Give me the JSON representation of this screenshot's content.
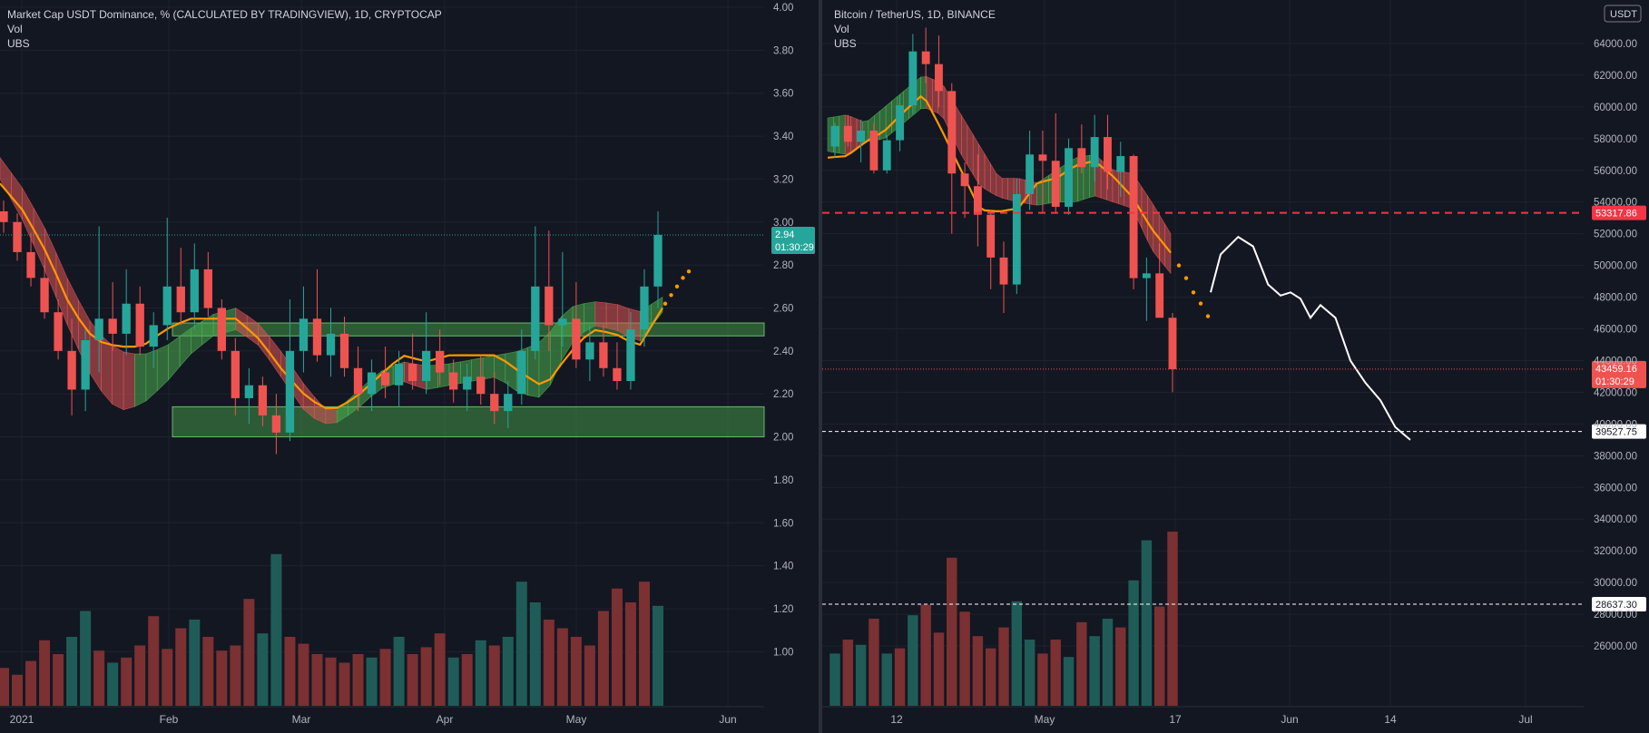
{
  "theme": {
    "background": "#131722",
    "grid": "#1e222d",
    "axis_text": "#b2b5be",
    "up_color": "#26a69a",
    "down_color": "#ef5350",
    "volume_up": "#1f5c58",
    "volume_down": "#7b3032",
    "band_bull": "#4caf50",
    "band_bear": "#e05555",
    "ma_line": "#ff9800",
    "zone_fill": "#4caf50",
    "projection": "#ffffff",
    "level_red": "#f23645"
  },
  "chart_data": [
    {
      "type": "candlestick",
      "title": "Market Cap USDT Dominance, % (CALCULATED BY TRADINGVIEW), 1D, CRYPTOCAP",
      "indicators": [
        "Vol",
        "UBS"
      ],
      "x_labels": [
        "2021",
        "Feb",
        "Mar",
        "Apr",
        "May",
        "Jun"
      ],
      "y_axis": {
        "min": 0.9,
        "max": 4.0,
        "ticks": [
          "4.00",
          "3.80",
          "3.60",
          "3.40",
          "3.20",
          "3.00",
          "2.80",
          "2.60",
          "2.40",
          "2.20",
          "2.00",
          "1.80",
          "1.60",
          "1.40",
          "1.20",
          "1.00"
        ]
      },
      "last_price": {
        "value": 2.94,
        "label": "2.94",
        "countdown": "01:30:29"
      },
      "support_zones": [
        [
          2.47,
          2.53
        ],
        [
          2.0,
          2.14
        ]
      ],
      "ubs_band_upper": [
        3.3,
        3.15,
        2.95,
        2.7,
        2.5,
        2.4,
        2.38,
        2.42,
        2.5,
        2.57,
        2.6,
        2.52,
        2.38,
        2.22,
        2.1,
        2.2,
        2.3,
        2.35,
        2.33,
        2.34,
        2.36,
        2.38,
        2.4,
        2.45,
        2.6,
        2.63,
        2.62,
        2.58,
        2.65
      ],
      "ubs_band_lower": [
        3.2,
        3.0,
        2.75,
        2.48,
        2.25,
        2.12,
        2.15,
        2.25,
        2.38,
        2.47,
        2.5,
        2.42,
        2.26,
        2.1,
        2.05,
        2.12,
        2.22,
        2.26,
        2.22,
        2.24,
        2.26,
        2.28,
        2.2,
        2.18,
        2.42,
        2.52,
        2.5,
        2.44,
        2.58
      ],
      "ma": [
        3.18,
        3.05,
        2.85,
        2.6,
        2.45,
        2.42,
        2.42,
        2.5,
        2.55,
        2.55,
        2.55,
        2.45,
        2.3,
        2.18,
        2.12,
        2.18,
        2.28,
        2.38,
        2.35,
        2.38,
        2.38,
        2.38,
        2.3,
        2.23,
        2.38,
        2.5,
        2.48,
        2.42,
        2.6
      ],
      "forecast_dots": [
        2.62,
        2.66,
        2.7,
        2.74,
        2.77
      ],
      "candles": [
        {
          "o": 3.05,
          "h": 3.1,
          "l": 2.95,
          "c": 3.0
        },
        {
          "o": 3.0,
          "h": 3.04,
          "l": 2.82,
          "c": 2.86
        },
        {
          "o": 2.86,
          "h": 2.95,
          "l": 2.7,
          "c": 2.74
        },
        {
          "o": 2.74,
          "h": 2.8,
          "l": 2.55,
          "c": 2.58
        },
        {
          "o": 2.58,
          "h": 2.64,
          "l": 2.36,
          "c": 2.4
        },
        {
          "o": 2.4,
          "h": 2.55,
          "l": 2.1,
          "c": 2.22
        },
        {
          "o": 2.22,
          "h": 2.5,
          "l": 2.12,
          "c": 2.45
        },
        {
          "o": 2.45,
          "h": 2.98,
          "l": 2.3,
          "c": 2.55
        },
        {
          "o": 2.55,
          "h": 2.72,
          "l": 2.4,
          "c": 2.48
        },
        {
          "o": 2.48,
          "h": 2.78,
          "l": 2.38,
          "c": 2.62
        },
        {
          "o": 2.62,
          "h": 2.7,
          "l": 2.38,
          "c": 2.42
        },
        {
          "o": 2.42,
          "h": 2.58,
          "l": 2.32,
          "c": 2.52
        },
        {
          "o": 2.52,
          "h": 3.02,
          "l": 2.45,
          "c": 2.7
        },
        {
          "o": 2.7,
          "h": 2.88,
          "l": 2.52,
          "c": 2.58
        },
        {
          "o": 2.58,
          "h": 2.9,
          "l": 2.5,
          "c": 2.78
        },
        {
          "o": 2.78,
          "h": 2.86,
          "l": 2.56,
          "c": 2.6
        },
        {
          "o": 2.6,
          "h": 2.64,
          "l": 2.36,
          "c": 2.4
        },
        {
          "o": 2.4,
          "h": 2.46,
          "l": 2.1,
          "c": 2.18
        },
        {
          "o": 2.18,
          "h": 2.32,
          "l": 2.06,
          "c": 2.24
        },
        {
          "o": 2.24,
          "h": 2.28,
          "l": 2.05,
          "c": 2.1
        },
        {
          "o": 2.1,
          "h": 2.2,
          "l": 1.92,
          "c": 2.02
        },
        {
          "o": 2.02,
          "h": 2.64,
          "l": 1.98,
          "c": 2.4
        },
        {
          "o": 2.4,
          "h": 2.7,
          "l": 2.3,
          "c": 2.55
        },
        {
          "o": 2.55,
          "h": 2.78,
          "l": 2.35,
          "c": 2.38
        },
        {
          "o": 2.38,
          "h": 2.6,
          "l": 2.28,
          "c": 2.48
        },
        {
          "o": 2.48,
          "h": 2.56,
          "l": 2.28,
          "c": 2.32
        },
        {
          "o": 2.32,
          "h": 2.42,
          "l": 2.12,
          "c": 2.2
        },
        {
          "o": 2.2,
          "h": 2.36,
          "l": 2.12,
          "c": 2.3
        },
        {
          "o": 2.3,
          "h": 2.42,
          "l": 2.18,
          "c": 2.24
        },
        {
          "o": 2.24,
          "h": 2.4,
          "l": 2.14,
          "c": 2.34
        },
        {
          "o": 2.34,
          "h": 2.48,
          "l": 2.22,
          "c": 2.26
        },
        {
          "o": 2.26,
          "h": 2.58,
          "l": 2.2,
          "c": 2.4
        },
        {
          "o": 2.4,
          "h": 2.5,
          "l": 2.24,
          "c": 2.3
        },
        {
          "o": 2.3,
          "h": 2.36,
          "l": 2.16,
          "c": 2.22
        },
        {
          "o": 2.22,
          "h": 2.34,
          "l": 2.12,
          "c": 2.28
        },
        {
          "o": 2.28,
          "h": 2.38,
          "l": 2.15,
          "c": 2.2
        },
        {
          "o": 2.2,
          "h": 2.3,
          "l": 2.06,
          "c": 2.12
        },
        {
          "o": 2.12,
          "h": 2.26,
          "l": 2.04,
          "c": 2.2
        },
        {
          "o": 2.2,
          "h": 2.5,
          "l": 2.15,
          "c": 2.4
        },
        {
          "o": 2.4,
          "h": 2.98,
          "l": 2.36,
          "c": 2.7
        },
        {
          "o": 2.7,
          "h": 2.96,
          "l": 2.4,
          "c": 2.52
        },
        {
          "o": 2.52,
          "h": 2.86,
          "l": 2.42,
          "c": 2.55
        },
        {
          "o": 2.55,
          "h": 2.72,
          "l": 2.32,
          "c": 2.36
        },
        {
          "o": 2.36,
          "h": 2.52,
          "l": 2.26,
          "c": 2.44
        },
        {
          "o": 2.44,
          "h": 2.52,
          "l": 2.28,
          "c": 2.32
        },
        {
          "o": 2.32,
          "h": 2.44,
          "l": 2.22,
          "c": 2.26
        },
        {
          "o": 2.26,
          "h": 2.58,
          "l": 2.22,
          "c": 2.5
        },
        {
          "o": 2.5,
          "h": 2.78,
          "l": 2.42,
          "c": 2.7
        },
        {
          "o": 2.7,
          "h": 3.05,
          "l": 2.6,
          "c": 2.94
        }
      ],
      "volume": {
        "min": 0,
        "max": 1,
        "bars": [
          {
            "v": 0.22,
            "up": false
          },
          {
            "v": 0.18,
            "up": false
          },
          {
            "v": 0.26,
            "up": false
          },
          {
            "v": 0.38,
            "up": false
          },
          {
            "v": 0.3,
            "up": false
          },
          {
            "v": 0.4,
            "up": true
          },
          {
            "v": 0.55,
            "up": true
          },
          {
            "v": 0.32,
            "up": false
          },
          {
            "v": 0.25,
            "up": true
          },
          {
            "v": 0.28,
            "up": false
          },
          {
            "v": 0.35,
            "up": false
          },
          {
            "v": 0.52,
            "up": false
          },
          {
            "v": 0.33,
            "up": false
          },
          {
            "v": 0.45,
            "up": false
          },
          {
            "v": 0.5,
            "up": true
          },
          {
            "v": 0.4,
            "up": false
          },
          {
            "v": 0.32,
            "up": false
          },
          {
            "v": 0.35,
            "up": false
          },
          {
            "v": 0.62,
            "up": false
          },
          {
            "v": 0.42,
            "up": true
          },
          {
            "v": 0.88,
            "up": true
          },
          {
            "v": 0.4,
            "up": false
          },
          {
            "v": 0.36,
            "up": false
          },
          {
            "v": 0.3,
            "up": false
          },
          {
            "v": 0.28,
            "up": false
          },
          {
            "v": 0.25,
            "up": false
          },
          {
            "v": 0.3,
            "up": false
          },
          {
            "v": 0.28,
            "up": true
          },
          {
            "v": 0.33,
            "up": false
          },
          {
            "v": 0.4,
            "up": true
          },
          {
            "v": 0.3,
            "up": false
          },
          {
            "v": 0.34,
            "up": false
          },
          {
            "v": 0.42,
            "up": false
          },
          {
            "v": 0.28,
            "up": true
          },
          {
            "v": 0.3,
            "up": false
          },
          {
            "v": 0.38,
            "up": true
          },
          {
            "v": 0.35,
            "up": false
          },
          {
            "v": 0.4,
            "up": true
          },
          {
            "v": 0.72,
            "up": true
          },
          {
            "v": 0.6,
            "up": true
          },
          {
            "v": 0.5,
            "up": false
          },
          {
            "v": 0.45,
            "up": false
          },
          {
            "v": 0.4,
            "up": false
          },
          {
            "v": 0.35,
            "up": false
          },
          {
            "v": 0.55,
            "up": false
          },
          {
            "v": 0.68,
            "up": false
          },
          {
            "v": 0.6,
            "up": false
          },
          {
            "v": 0.72,
            "up": false
          },
          {
            "v": 0.58,
            "up": true
          }
        ]
      }
    },
    {
      "type": "candlestick",
      "title": "Bitcoin / TetherUS, 1D, BINANCE",
      "indicators": [
        "Vol",
        "UBS"
      ],
      "currency_badge": "USDT",
      "x_labels": [
        "12",
        "May",
        "17",
        "Jun",
        "14",
        "Jul"
      ],
      "y_axis": {
        "min": 24000,
        "max": 66000,
        "ticks": [
          "64000.00",
          "62000.00",
          "60000.00",
          "58000.00",
          "56000.00",
          "54000.00",
          "52000.00",
          "50000.00",
          "48000.00",
          "46000.00",
          "44000.00",
          "42000.00",
          "40000.00",
          "38000.00",
          "36000.00",
          "34000.00",
          "32000.00",
          "30000.00",
          "28000.00",
          "26000.00"
        ]
      },
      "price_levels": [
        {
          "value": 53317.86,
          "label": "53317.86",
          "style": "red-dashed"
        },
        {
          "value": 39527.75,
          "label": "39527.75",
          "style": "white-dashed"
        },
        {
          "value": 28637.3,
          "label": "28637.30",
          "style": "white-dashed"
        }
      ],
      "last_price": {
        "value": 43459.16,
        "label": "43459.16",
        "countdown": "01:30:29"
      },
      "ubs_band_upper": [
        59300,
        59500,
        59000,
        60000,
        61000,
        62000,
        61500,
        59500,
        57500,
        55500,
        55500,
        55200,
        56000,
        56800,
        57000,
        56000,
        55800,
        54000,
        52000
      ],
      "ubs_band_lower": [
        57200,
        57000,
        57800,
        58000,
        59000,
        60000,
        59500,
        57000,
        55000,
        54300,
        54000,
        53800,
        54000,
        54000,
        54400,
        54000,
        53600,
        51000,
        49500
      ],
      "ma": [
        56800,
        56900,
        57800,
        58500,
        59700,
        60800,
        58500,
        56000,
        53500,
        53400,
        53600,
        55200,
        55500,
        56300,
        56600,
        55600,
        54300,
        52300,
        50800
      ],
      "forecast_dots": [
        50000,
        49200,
        48300,
        47600,
        46800
      ],
      "projection_path": [
        [
          48300,
          0.0
        ],
        [
          50700,
          0.2
        ],
        [
          51800,
          0.55
        ],
        [
          51200,
          0.85
        ],
        [
          48800,
          1.15
        ],
        [
          48100,
          1.4
        ],
        [
          48300,
          1.6
        ],
        [
          47900,
          1.8
        ],
        [
          46700,
          2.0
        ],
        [
          47500,
          2.2
        ],
        [
          46700,
          2.5
        ],
        [
          44000,
          2.8
        ],
        [
          42600,
          3.1
        ],
        [
          41500,
          3.4
        ],
        [
          39800,
          3.7
        ],
        [
          39000,
          4.0
        ]
      ],
      "candles": [
        {
          "o": 57500,
          "h": 59000,
          "l": 56800,
          "c": 58800
        },
        {
          "o": 58800,
          "h": 59500,
          "l": 57500,
          "c": 57800
        },
        {
          "o": 57800,
          "h": 59200,
          "l": 56500,
          "c": 58500
        },
        {
          "o": 58500,
          "h": 59000,
          "l": 55800,
          "c": 56000
        },
        {
          "o": 56000,
          "h": 58200,
          "l": 55800,
          "c": 57900
        },
        {
          "o": 57900,
          "h": 60800,
          "l": 57200,
          "c": 60100
        },
        {
          "o": 60100,
          "h": 64600,
          "l": 59500,
          "c": 63500
        },
        {
          "o": 63500,
          "h": 65000,
          "l": 61500,
          "c": 62700
        },
        {
          "o": 62700,
          "h": 64500,
          "l": 60000,
          "c": 61000
        },
        {
          "o": 61000,
          "h": 61500,
          "l": 52000,
          "c": 55800
        },
        {
          "o": 55800,
          "h": 56500,
          "l": 53000,
          "c": 55000
        },
        {
          "o": 55000,
          "h": 57000,
          "l": 51200,
          "c": 53200
        },
        {
          "o": 53200,
          "h": 53500,
          "l": 48500,
          "c": 50500
        },
        {
          "o": 50500,
          "h": 51500,
          "l": 47000,
          "c": 48800
        },
        {
          "o": 48800,
          "h": 55500,
          "l": 48200,
          "c": 54500
        },
        {
          "o": 54500,
          "h": 58500,
          "l": 53500,
          "c": 57000
        },
        {
          "o": 57000,
          "h": 58500,
          "l": 53300,
          "c": 56600
        },
        {
          "o": 56600,
          "h": 59600,
          "l": 53300,
          "c": 53700
        },
        {
          "o": 53700,
          "h": 58000,
          "l": 53200,
          "c": 57400
        },
        {
          "o": 57400,
          "h": 58900,
          "l": 55800,
          "c": 56200
        },
        {
          "o": 56200,
          "h": 59500,
          "l": 55300,
          "c": 58100
        },
        {
          "o": 58100,
          "h": 59500,
          "l": 54800,
          "c": 55900
        },
        {
          "o": 55900,
          "h": 57800,
          "l": 54300,
          "c": 56900
        },
        {
          "o": 56900,
          "h": 57000,
          "l": 48500,
          "c": 49200
        },
        {
          "o": 49200,
          "h": 50500,
          "l": 46500,
          "c": 49500
        },
        {
          "o": 49500,
          "h": 51400,
          "l": 46900,
          "c": 46700
        },
        {
          "o": 46700,
          "h": 47000,
          "l": 42000,
          "c": 43460
        }
      ],
      "volume": {
        "min": 0,
        "max": 1,
        "bars": [
          {
            "v": 0.3,
            "up": true
          },
          {
            "v": 0.38,
            "up": false
          },
          {
            "v": 0.35,
            "up": true
          },
          {
            "v": 0.5,
            "up": false
          },
          {
            "v": 0.3,
            "up": true
          },
          {
            "v": 0.33,
            "up": false
          },
          {
            "v": 0.52,
            "up": true
          },
          {
            "v": 0.58,
            "up": false
          },
          {
            "v": 0.42,
            "up": false
          },
          {
            "v": 0.85,
            "up": false
          },
          {
            "v": 0.54,
            "up": false
          },
          {
            "v": 0.4,
            "up": false
          },
          {
            "v": 0.33,
            "up": false
          },
          {
            "v": 0.45,
            "up": false
          },
          {
            "v": 0.6,
            "up": true
          },
          {
            "v": 0.38,
            "up": true
          },
          {
            "v": 0.3,
            "up": false
          },
          {
            "v": 0.38,
            "up": false
          },
          {
            "v": 0.28,
            "up": true
          },
          {
            "v": 0.48,
            "up": false
          },
          {
            "v": 0.4,
            "up": true
          },
          {
            "v": 0.5,
            "up": true
          },
          {
            "v": 0.45,
            "up": false
          },
          {
            "v": 0.72,
            "up": true
          },
          {
            "v": 0.95,
            "up": true
          },
          {
            "v": 0.57,
            "up": false
          },
          {
            "v": 1.0,
            "up": false
          }
        ]
      }
    }
  ]
}
